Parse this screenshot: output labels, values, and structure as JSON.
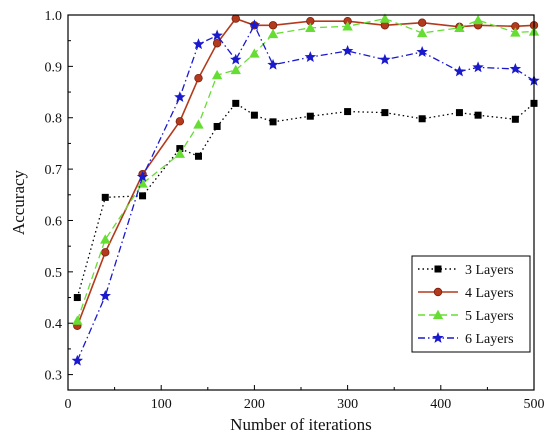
{
  "chart_data": {
    "type": "line",
    "title": "",
    "xlabel": "Number of iterations",
    "ylabel": "Accuracy",
    "xlim": [
      0,
      500
    ],
    "ylim": [
      0.27,
      1.0
    ],
    "xticks": [
      0,
      100,
      200,
      300,
      400,
      500
    ],
    "xtick_labels": [
      "0",
      "100",
      "200",
      "300",
      "400",
      "500"
    ],
    "yticks": [
      0.3,
      0.4,
      0.5,
      0.6,
      0.7,
      0.8,
      0.9,
      1.0
    ],
    "ytick_labels": [
      "0.3",
      "0.4",
      "0.5",
      "0.6",
      "0.7",
      "0.8",
      "0.9",
      "1.0"
    ],
    "grid": false,
    "legend_position": "lower-right",
    "series": [
      {
        "name": "3 Layers",
        "color": "#000000",
        "marker": "square",
        "dash": "dotted",
        "x": [
          10,
          40,
          80,
          120,
          140,
          160,
          180,
          200,
          220,
          260,
          300,
          340,
          380,
          420,
          440,
          480,
          500
        ],
        "y": [
          0.45,
          0.645,
          0.648,
          0.74,
          0.725,
          0.783,
          0.828,
          0.805,
          0.792,
          0.803,
          0.812,
          0.81,
          0.798,
          0.81,
          0.805,
          0.797,
          0.828
        ]
      },
      {
        "name": "4 Layers",
        "color": "#b33a1c",
        "marker": "circle",
        "dash": "solid",
        "x": [
          10,
          40,
          80,
          120,
          140,
          160,
          180,
          200,
          220,
          260,
          300,
          340,
          380,
          420,
          440,
          480,
          500
        ],
        "y": [
          0.395,
          0.538,
          0.69,
          0.793,
          0.877,
          0.945,
          0.993,
          0.98,
          0.98,
          0.988,
          0.988,
          0.98,
          0.985,
          0.977,
          0.98,
          0.978,
          0.98
        ]
      },
      {
        "name": "5 Layers",
        "color": "#66dd33",
        "marker": "triangle",
        "dash": "dashed",
        "x": [
          10,
          40,
          80,
          120,
          140,
          160,
          180,
          200,
          220,
          260,
          300,
          340,
          380,
          420,
          440,
          480,
          500
        ],
        "y": [
          0.405,
          0.563,
          0.672,
          0.73,
          0.787,
          0.883,
          0.893,
          0.925,
          0.963,
          0.975,
          0.978,
          0.993,
          0.965,
          0.975,
          0.99,
          0.966,
          0.968
        ]
      },
      {
        "name": "6 Layers",
        "color": "#1a1acc",
        "marker": "star",
        "dash": "dashdot",
        "x": [
          10,
          40,
          80,
          120,
          140,
          160,
          180,
          200,
          220,
          260,
          300,
          340,
          380,
          420,
          440,
          480,
          500
        ],
        "y": [
          0.327,
          0.453,
          0.685,
          0.84,
          0.943,
          0.96,
          0.913,
          0.98,
          0.903,
          0.918,
          0.93,
          0.913,
          0.928,
          0.89,
          0.898,
          0.895,
          0.872
        ]
      }
    ]
  }
}
